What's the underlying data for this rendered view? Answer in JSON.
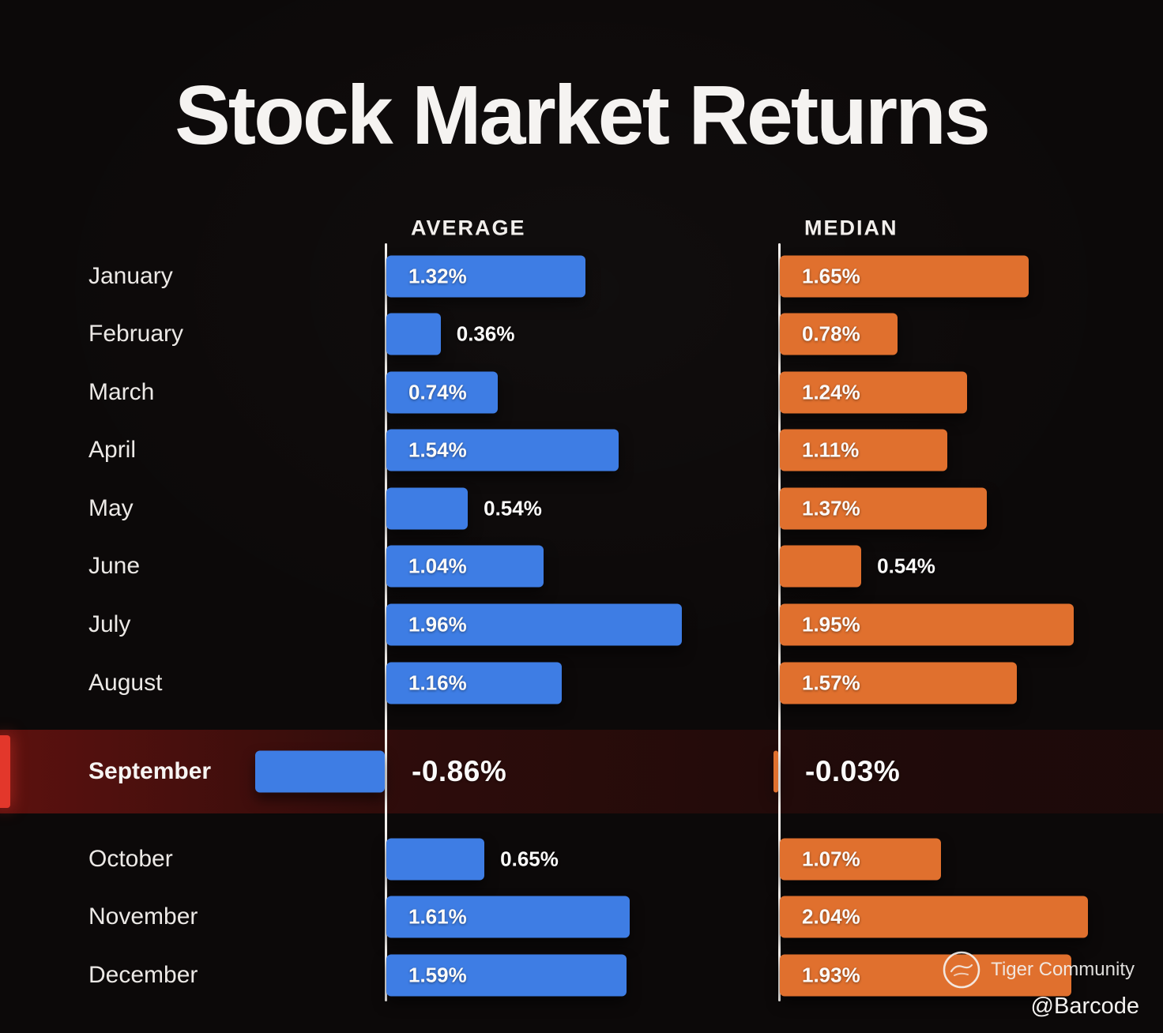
{
  "title": "Stock Market Returns",
  "chart_data": {
    "type": "bar",
    "orientation": "horizontal",
    "categories": [
      "January",
      "February",
      "March",
      "April",
      "May",
      "June",
      "July",
      "August",
      "September",
      "October",
      "November",
      "December"
    ],
    "series": [
      {
        "name": "AVERAGE",
        "color": "#3e7de4",
        "values": [
          1.32,
          0.36,
          0.74,
          1.54,
          0.54,
          1.04,
          1.96,
          1.16,
          -0.86,
          0.65,
          1.61,
          1.59
        ]
      },
      {
        "name": "MEDIAN",
        "color": "#e0702e",
        "values": [
          1.65,
          0.78,
          1.24,
          1.11,
          1.37,
          0.54,
          1.95,
          1.57,
          -0.03,
          1.07,
          2.04,
          1.93
        ]
      }
    ],
    "value_format": "percent",
    "value_decimals": 2,
    "highlight_category": "September",
    "highlight_color": "#e3372b",
    "xlim": [
      -1.0,
      2.1
    ],
    "grid": false,
    "legend_position": "column-headers"
  },
  "watermark": {
    "community": "Tiger Community",
    "handle": "@Barcode"
  }
}
